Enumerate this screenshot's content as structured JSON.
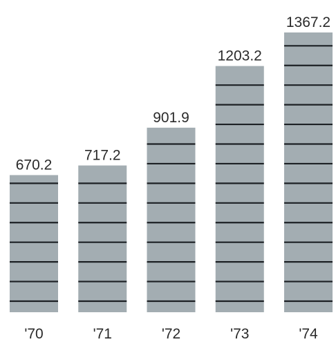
{
  "chart_data": {
    "type": "bar",
    "categories": [
      "'70",
      "'71",
      "'72",
      "'73",
      "'74"
    ],
    "values": [
      670.2,
      717.2,
      901.9,
      1203.2,
      1367.2
    ],
    "value_labels": [
      "670.2",
      "717.2",
      "901.9",
      "1203.2",
      "1367.2"
    ],
    "title": "",
    "xlabel": "",
    "ylabel": "",
    "ylim": [
      0,
      1367.2
    ],
    "grid": false,
    "legend": "none",
    "bar_color": "#a3adb2",
    "rule_color": "#1c2024",
    "rule_interval": 100
  }
}
